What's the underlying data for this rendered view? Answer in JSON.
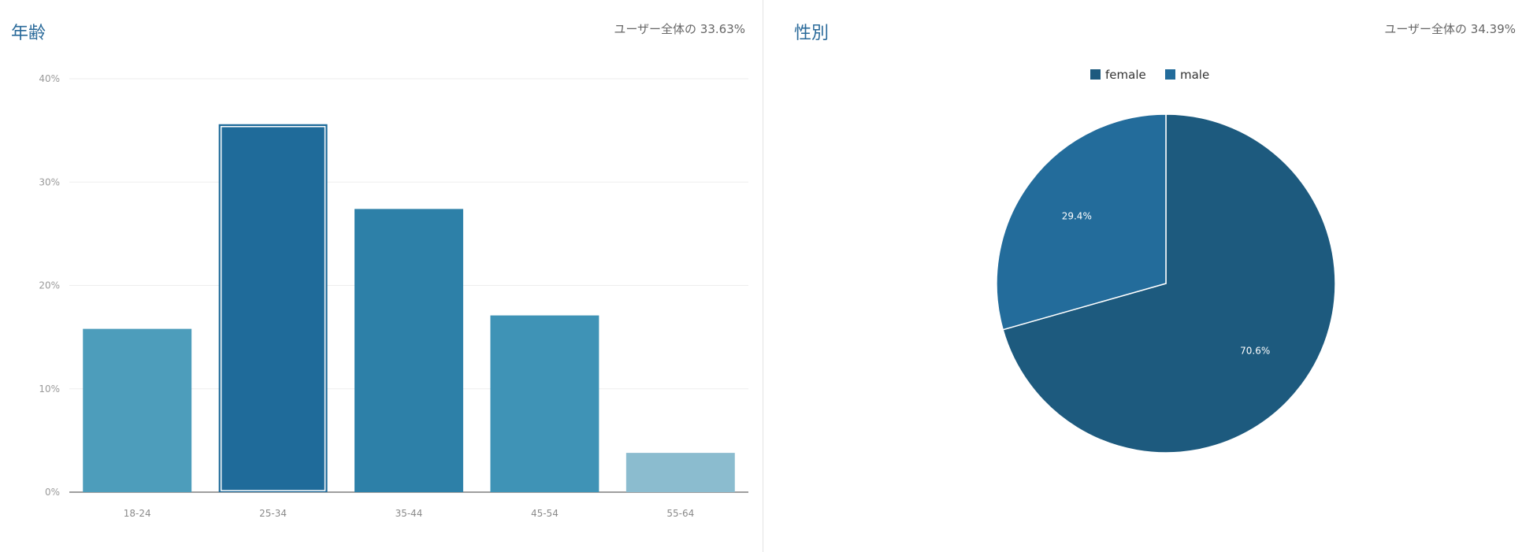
{
  "age_panel": {
    "title": "年齢",
    "summary": "ユーザー全体の 33.63%"
  },
  "gender_panel": {
    "title": "性別",
    "summary": "ユーザー全体の 34.39%"
  },
  "chart_data": [
    {
      "type": "bar",
      "title": "年齢",
      "categories": [
        "18-24",
        "25-34",
        "35-44",
        "45-54",
        "55-64"
      ],
      "values": [
        15.8,
        35.6,
        27.4,
        17.1,
        3.8
      ],
      "unit": "%",
      "ylim": [
        0,
        40
      ],
      "yticks": [
        "0%",
        "10%",
        "20%",
        "30%",
        "40%"
      ],
      "grid": true,
      "highlighted_category": "25-34",
      "colors": [
        "#4d9dbb",
        "#1f6b9a",
        "#2d80a8",
        "#3f93b6",
        "#8bbccf"
      ]
    },
    {
      "type": "pie",
      "title": "性別",
      "labels": [
        "female",
        "male"
      ],
      "values": [
        70.6,
        29.4
      ],
      "slice_labels": [
        "70.6%",
        "29.4%"
      ],
      "colors": [
        "#1d5a7e",
        "#236c9b"
      ],
      "legend_position": "top"
    }
  ]
}
